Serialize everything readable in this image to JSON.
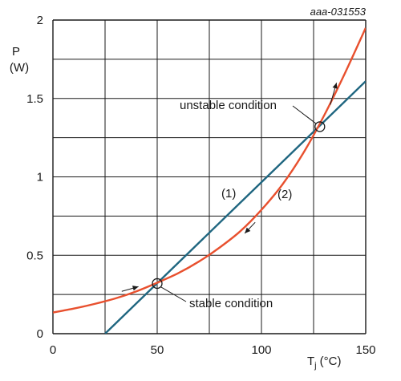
{
  "figure_ref": "aaa-031553",
  "chart_data": {
    "type": "line",
    "x_label_main": "T",
    "x_label_sub": "j",
    "x_label_unit": "(°C)",
    "y_label_line1": "P",
    "y_label_line2": "(W)",
    "xlim": [
      0,
      150
    ],
    "ylim": [
      0,
      2
    ],
    "x_ticks": [
      0,
      50,
      100,
      150
    ],
    "y_ticks": [
      0,
      0.5,
      1,
      1.5,
      2
    ],
    "x_tick_labels": [
      "0",
      "50",
      "100",
      "150"
    ],
    "y_tick_labels": [
      "0",
      "0.5",
      "1",
      "1.5",
      "2"
    ],
    "x_grid": [
      0,
      25,
      50,
      75,
      100,
      125,
      150
    ],
    "y_grid": [
      0,
      0.25,
      0.5,
      0.75,
      1,
      1.25,
      1.5,
      1.75,
      2
    ],
    "grid": true,
    "series": [
      {
        "name": "(1)",
        "color": "#1f6680",
        "x": [
          25,
          150
        ],
        "y": [
          0,
          1.61
        ]
      },
      {
        "name": "(2)",
        "color": "#e8502e",
        "x": [
          0,
          10,
          20,
          30,
          40,
          50,
          60,
          70,
          80,
          90,
          100,
          110,
          120,
          130,
          140,
          150
        ],
        "y": [
          0.135,
          0.16,
          0.19,
          0.225,
          0.27,
          0.325,
          0.385,
          0.46,
          0.55,
          0.655,
          0.79,
          0.95,
          1.15,
          1.39,
          1.66,
          1.95
        ]
      }
    ],
    "annotations": [
      {
        "text": "stable condition",
        "x": 50,
        "y": 0.32
      },
      {
        "text": "unstable condition",
        "x": 128,
        "y": 1.32
      }
    ],
    "arrows": [
      {
        "x1": 33,
        "y1": 0.27,
        "x2": 41,
        "y2": 0.3
      },
      {
        "x1": 97,
        "y1": 0.71,
        "x2": 92,
        "y2": 0.64
      },
      {
        "x1": 133,
        "y1": 1.46,
        "x2": 136,
        "y2": 1.6
      }
    ]
  }
}
